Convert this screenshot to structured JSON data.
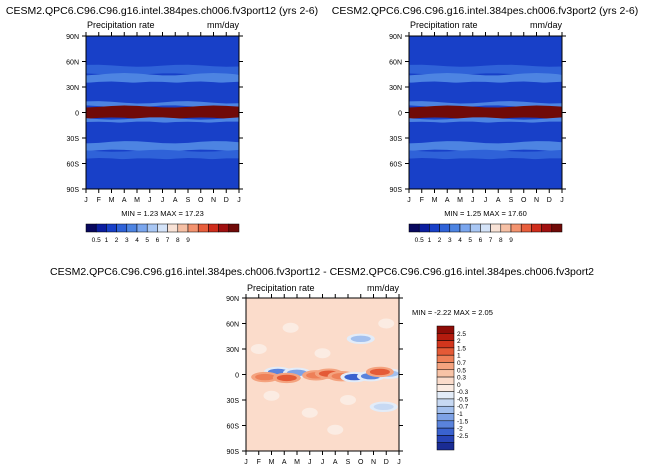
{
  "chart_data": [
    {
      "type": "heatmap",
      "title": "CESM2.QPC6.C96.C96.g16.intel.384pes.ch006.fv3port12 (yrs 2-6)",
      "left_label": "Precipitation rate",
      "right_label": "mm/day",
      "x_labels": [
        "J",
        "F",
        "M",
        "A",
        "M",
        "J",
        "J",
        "A",
        "S",
        "O",
        "N",
        "D",
        "J"
      ],
      "y_labels": [
        "90N",
        "60N",
        "30N",
        "0",
        "30S",
        "60S",
        "90S"
      ],
      "ylim": [
        -90,
        90
      ],
      "stats": {
        "label": "MIN =   1.23 MAX =  17.23",
        "min": 1.23,
        "max": 17.23
      },
      "colorbar": {
        "orientation": "horizontal",
        "tick_labels": [
          "0.5",
          "1",
          "2",
          "3",
          "4",
          "5",
          "6",
          "7",
          "8",
          "9"
        ],
        "colors": [
          "#08085e",
          "#0b1ea0",
          "#1840c8",
          "#2f62d8",
          "#4d84e2",
          "#7aa6ee",
          "#a9c7f4",
          "#d4e3f8",
          "#f8e2d6",
          "#f6c0a5",
          "#f3936f",
          "#e85e3c",
          "#cf2d1c",
          "#a01010",
          "#700a08"
        ]
      },
      "bands": [
        {
          "lat": [
            55,
            90
          ],
          "rate": 1.0
        },
        {
          "lat": [
            45,
            55
          ],
          "rate": 2.0
        },
        {
          "lat": [
            35,
            45
          ],
          "rate": 3.0
        },
        {
          "lat": [
            12,
            35
          ],
          "rate": 1.0
        },
        {
          "lat": [
            7,
            12
          ],
          "rate": 3.0
        },
        {
          "lat": [
            -7,
            7
          ],
          "rate": 17.0
        },
        {
          "lat": [
            -12,
            -7
          ],
          "rate": 3.0
        },
        {
          "lat": [
            -35,
            -12
          ],
          "rate": 1.0
        },
        {
          "lat": [
            -45,
            -35
          ],
          "rate": 3.0
        },
        {
          "lat": [
            -55,
            -45
          ],
          "rate": 2.0
        },
        {
          "lat": [
            -90,
            -55
          ],
          "rate": 1.0
        }
      ]
    },
    {
      "type": "heatmap",
      "title": "CESM2.QPC6.C96.C96.g16.intel.384pes.ch006.fv3port2 (yrs 2-6)",
      "left_label": "Precipitation rate",
      "right_label": "mm/day",
      "x_labels": [
        "J",
        "F",
        "M",
        "A",
        "M",
        "J",
        "J",
        "A",
        "S",
        "O",
        "N",
        "D",
        "J"
      ],
      "y_labels": [
        "90N",
        "60N",
        "30N",
        "0",
        "30S",
        "60S",
        "90S"
      ],
      "ylim": [
        -90,
        90
      ],
      "stats": {
        "label": "MIN =   1.25 MAX =  17.60",
        "min": 1.25,
        "max": 17.6
      },
      "colorbar": {
        "orientation": "horizontal",
        "tick_labels": [
          "0.5",
          "1",
          "2",
          "3",
          "4",
          "5",
          "6",
          "7",
          "8",
          "9"
        ],
        "colors": [
          "#08085e",
          "#0b1ea0",
          "#1840c8",
          "#2f62d8",
          "#4d84e2",
          "#7aa6ee",
          "#a9c7f4",
          "#d4e3f8",
          "#f8e2d6",
          "#f6c0a5",
          "#f3936f",
          "#e85e3c",
          "#cf2d1c",
          "#a01010",
          "#700a08"
        ]
      },
      "bands": [
        {
          "lat": [
            55,
            90
          ],
          "rate": 1.0
        },
        {
          "lat": [
            45,
            55
          ],
          "rate": 2.0
        },
        {
          "lat": [
            35,
            45
          ],
          "rate": 3.0
        },
        {
          "lat": [
            12,
            35
          ],
          "rate": 1.0
        },
        {
          "lat": [
            7,
            12
          ],
          "rate": 3.0
        },
        {
          "lat": [
            -7,
            7
          ],
          "rate": 17.0
        },
        {
          "lat": [
            -12,
            -7
          ],
          "rate": 3.0
        },
        {
          "lat": [
            -35,
            -12
          ],
          "rate": 1.0
        },
        {
          "lat": [
            -45,
            -35
          ],
          "rate": 3.0
        },
        {
          "lat": [
            -55,
            -45
          ],
          "rate": 2.0
        },
        {
          "lat": [
            -90,
            -55
          ],
          "rate": 1.0
        }
      ]
    },
    {
      "type": "heatmap",
      "title": "CESM2.QPC6.C96.C96.g16.intel.384pes.ch006.fv3port12 - CESM2.QPC6.C96.C96.g16.intel.384pes.ch006.fv3port2",
      "left_label": "Precipitation rate",
      "right_label": "mm/day",
      "x_labels": [
        "J",
        "F",
        "M",
        "A",
        "M",
        "J",
        "J",
        "A",
        "S",
        "O",
        "N",
        "D",
        "J"
      ],
      "y_labels": [
        "90N",
        "60N",
        "30N",
        "0",
        "30S",
        "60S",
        "90S"
      ],
      "ylim": [
        -90,
        90
      ],
      "stats": {
        "label": "MIN =  -2.22 MAX =   2.05",
        "min": -2.22,
        "max": 2.05
      },
      "colorbar": {
        "orientation": "vertical",
        "tick_labels": [
          "2.5",
          "2",
          "1.5",
          "1",
          "0.7",
          "0.5",
          "0.3",
          "0",
          "-0.3",
          "-0.5",
          "-0.7",
          "-1",
          "-1.5",
          "-2",
          "-2.5"
        ],
        "colors": [
          "#8e0c07",
          "#b41b0e",
          "#d2361d",
          "#e45a36",
          "#ee8058",
          "#f4a37f",
          "#f8c3a6",
          "#fbdccb",
          "#fbece3",
          "#e3ecf8",
          "#c7d9f3",
          "#a3c0ee",
          "#7ea2e6",
          "#5a83dc",
          "#3a62cf",
          "#2744b7",
          "#1a2c94"
        ]
      },
      "background_diff": 0.2,
      "anomalies": [
        {
          "month": 2.5,
          "lat": 3,
          "value": -2.0
        },
        {
          "month": 4.0,
          "lat": 2,
          "value": -1.2
        },
        {
          "month": 1.5,
          "lat": -3,
          "value": 0.8
        },
        {
          "month": 3.2,
          "lat": -4,
          "value": 1.4
        },
        {
          "month": 5.5,
          "lat": -1,
          "value": 0.9
        },
        {
          "month": 6.5,
          "lat": 1,
          "value": 1.2
        },
        {
          "month": 7.5,
          "lat": -2,
          "value": 0.8
        },
        {
          "month": 8.5,
          "lat": -3,
          "value": -2.1
        },
        {
          "month": 9.8,
          "lat": -2,
          "value": -1.8
        },
        {
          "month": 11.2,
          "lat": 1,
          "value": -0.8
        },
        {
          "month": 10.5,
          "lat": 3,
          "value": 1.1
        },
        {
          "month": 9.0,
          "lat": 42,
          "value": -0.8
        },
        {
          "month": 3.5,
          "lat": 55,
          "value": -0.3
        },
        {
          "month": 10.8,
          "lat": -38,
          "value": -0.6
        },
        {
          "month": 5.0,
          "lat": -45,
          "value": -0.3
        },
        {
          "month": 1.0,
          "lat": 30,
          "value": -0.3
        },
        {
          "month": 6.0,
          "lat": 25,
          "value": -0.3
        },
        {
          "month": 2.0,
          "lat": -25,
          "value": -0.3
        },
        {
          "month": 8.0,
          "lat": -30,
          "value": -0.3
        },
        {
          "month": 11.0,
          "lat": 60,
          "value": -0.3
        },
        {
          "month": 7.0,
          "lat": -65,
          "value": -0.3
        }
      ]
    }
  ]
}
